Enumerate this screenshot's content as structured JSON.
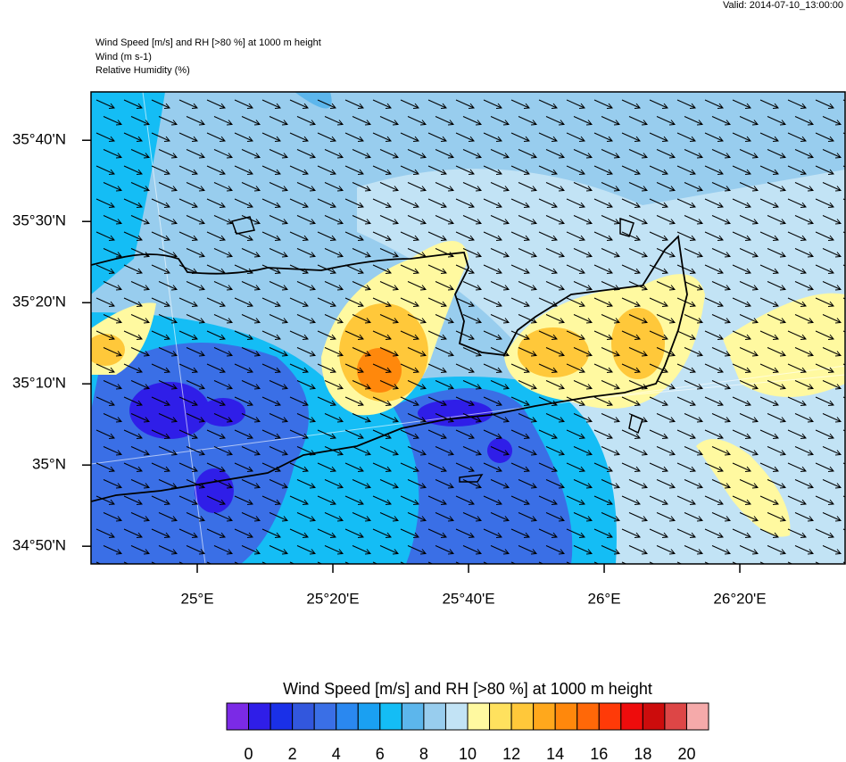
{
  "header": {
    "valid": "Valid: 2014-07-10_13:00:00",
    "title": "Wind Speed [m/s] and RH [>80 %] at 1000 m height",
    "line2": "Wind   (m s-1)",
    "line3": "Relative Humidity   (%)"
  },
  "map": {
    "xlim": [
      24.739,
      26.592
    ],
    "ylim": [
      34.797,
      35.766
    ],
    "yticks": [
      {
        "value": 34.8333,
        "label": "34°50'N"
      },
      {
        "value": 35,
        "label": "35°N"
      },
      {
        "value": 35.1667,
        "label": "35°10'N"
      },
      {
        "value": 35.3333,
        "label": "35°20'N"
      },
      {
        "value": 35.5,
        "label": "35°30'N"
      },
      {
        "value": 35.6667,
        "label": "35°40'N"
      }
    ],
    "xticks": [
      {
        "value": 25,
        "label": "25°E"
      },
      {
        "value": 25.3333,
        "label": "25°20'E"
      },
      {
        "value": 25.6667,
        "label": "25°40'E"
      },
      {
        "value": 26,
        "label": "26°E"
      },
      {
        "value": 26.3333,
        "label": "26°20'E"
      }
    ]
  },
  "colorbar": {
    "title": "Wind Speed [m/s] and RH [>80 %] at 1000 m height",
    "lim": [
      -1,
      21
    ],
    "colors": [
      "#7b2ae6",
      "#2f1ee8",
      "#1a30e8",
      "#3257dd",
      "#3a6fe6",
      "#2a88f0",
      "#1aa0f2",
      "#14bdf5",
      "#5cb6ec",
      "#98cdee",
      "#c2e3f5",
      "#fff9a0",
      "#ffe15e",
      "#ffc83a",
      "#ffa81c",
      "#ff880c",
      "#ff6808",
      "#ff3a08",
      "#ee0c0c",
      "#cc0c0c",
      "#dd4646",
      "#f5aaaa"
    ],
    "ticks": [
      0,
      2,
      4,
      6,
      8,
      10,
      12,
      14,
      16,
      18,
      20
    ]
  }
}
